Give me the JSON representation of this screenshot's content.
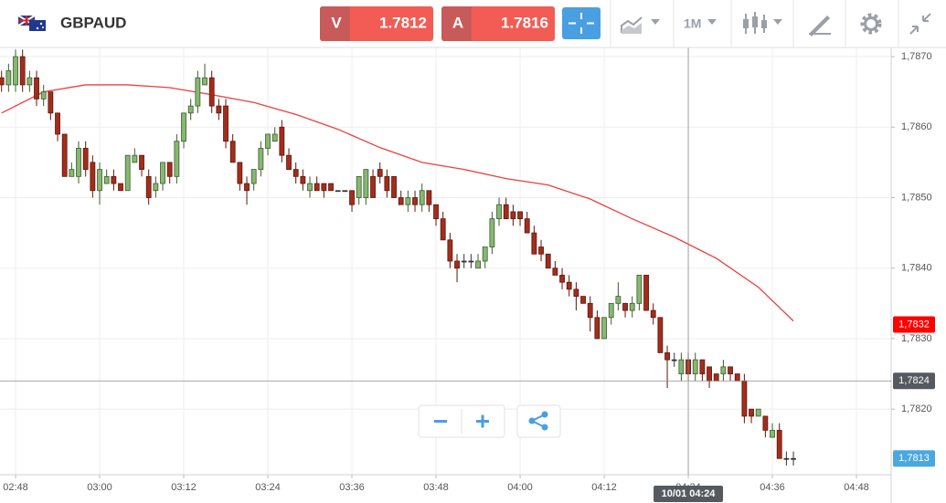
{
  "toolbar": {
    "symbol": "GBPAUD",
    "bid_label": "V",
    "bid": 1.7812,
    "ask_label": "A",
    "ask": 1.7816,
    "timeframe": "1M"
  },
  "chart_data": {
    "type": "candlestick",
    "up_color": "#86b872",
    "down_color": "#a32d1c",
    "grid": true,
    "xlim": [
      165.78,
      292.95
    ],
    "xticks": [
      {
        "value": 168,
        "label": "02:48"
      },
      {
        "value": 180,
        "label": "03:00"
      },
      {
        "value": 192,
        "label": "03:12"
      },
      {
        "value": 204,
        "label": "03:24"
      },
      {
        "value": 216,
        "label": "03:36"
      },
      {
        "value": 228,
        "label": "03:48"
      },
      {
        "value": 240,
        "label": "04:00"
      },
      {
        "value": 252,
        "label": "04:12"
      },
      {
        "value": 264,
        "label": "04:24"
      },
      {
        "value": 276,
        "label": "04:36"
      },
      {
        "value": 288,
        "label": "04:48"
      }
    ],
    "ylim": [
      1.78107,
      1.78713
    ],
    "yticks": [
      {
        "value": 1.782,
        "label": "1,7820"
      },
      {
        "value": 1.783,
        "label": "1,7830"
      },
      {
        "value": 1.784,
        "label": "1,7840"
      },
      {
        "value": 1.785,
        "label": "1,7850"
      },
      {
        "value": 1.786,
        "label": "1,7860"
      },
      {
        "value": 1.787,
        "label": "1,7870"
      }
    ],
    "x": [
      166,
      167,
      168,
      169,
      170,
      171,
      172,
      173,
      174,
      175,
      176,
      177,
      178,
      179,
      180,
      181,
      182,
      183,
      184,
      185,
      186,
      187,
      188,
      189,
      190,
      191,
      192,
      193,
      194,
      195,
      196,
      197,
      198,
      199,
      200,
      201,
      202,
      203,
      204,
      205,
      206,
      207,
      208,
      209,
      210,
      211,
      212,
      213,
      214,
      215,
      216,
      217,
      218,
      219,
      220,
      221,
      222,
      223,
      224,
      225,
      226,
      227,
      228,
      229,
      230,
      231,
      232,
      233,
      234,
      235,
      236,
      237,
      238,
      239,
      240,
      241,
      242,
      243,
      244,
      245,
      246,
      247,
      248,
      249,
      250,
      251,
      252,
      253,
      254,
      255,
      256,
      257,
      258,
      259,
      260,
      261,
      262,
      263,
      264,
      265,
      266,
      267,
      268,
      269,
      270,
      271,
      272,
      273,
      274,
      275,
      276,
      277,
      278,
      279
    ],
    "open": [
      1.7867,
      1.7866,
      1.7866,
      1.787,
      1.7866,
      1.7867,
      1.7864,
      1.7865,
      1.7862,
      1.7859,
      1.7853,
      1.7853,
      1.7857,
      1.7855,
      1.7851,
      1.7852,
      1.7853,
      1.7852,
      1.7851,
      1.7855,
      1.7856,
      1.7853,
      1.7851,
      1.7852,
      1.7855,
      1.7853,
      1.7858,
      1.7862,
      1.7863,
      1.7866,
      1.7867,
      1.7863,
      1.7863,
      1.7858,
      1.7855,
      1.7852,
      1.7852,
      1.7854,
      1.7857,
      1.7858,
      1.786,
      1.7856,
      1.7854,
      1.7853,
      1.7851,
      1.7852,
      1.7852,
      1.7852,
      1.7851,
      1.7851,
      1.7851,
      1.785,
      1.785,
      1.7853,
      1.7854,
      1.7853,
      1.7853,
      1.785,
      1.7849,
      1.785,
      1.7849,
      1.7851,
      1.7849,
      1.7847,
      1.7844,
      1.7841,
      1.7841,
      1.7841,
      1.784,
      1.7841,
      1.7843,
      1.7847,
      1.7849,
      1.7848,
      1.7848,
      1.7847,
      1.7845,
      1.7843,
      1.7842,
      1.784,
      1.7839,
      1.7838,
      1.7837,
      1.7836,
      1.7835,
      1.7833,
      1.783,
      1.7833,
      1.7835,
      1.7835,
      1.7834,
      1.7835,
      1.7839,
      1.7834,
      1.7833,
      1.7828,
      1.7827,
      1.7825,
      1.7827,
      1.7825,
      1.7827,
      1.7826,
      1.7825,
      1.7825,
      1.7826,
      1.7825,
      1.7824,
      1.782,
      1.7819,
      1.7819,
      1.7816,
      1.7817,
      1.7813,
      1.7813
    ],
    "high": [
      1.7868,
      1.7869,
      1.7871,
      1.7871,
      1.7868,
      1.7868,
      1.7866,
      1.7865,
      1.7862,
      1.7859,
      1.7855,
      1.7858,
      1.7858,
      1.7856,
      1.7855,
      1.7854,
      1.7854,
      1.7852,
      1.7856,
      1.7857,
      1.7856,
      1.7854,
      1.7853,
      1.7855,
      1.7855,
      1.7859,
      1.7862,
      1.7864,
      1.7868,
      1.7869,
      1.7868,
      1.7864,
      1.7864,
      1.7859,
      1.7855,
      1.7853,
      1.7854,
      1.7858,
      1.7859,
      1.786,
      1.7861,
      1.7857,
      1.7855,
      1.7854,
      1.7853,
      1.7853,
      1.7852,
      1.7852,
      1.7851,
      1.7851,
      1.7851,
      1.7853,
      1.7854,
      1.7854,
      1.7855,
      1.7854,
      1.7853,
      1.7851,
      1.7851,
      1.7851,
      1.7852,
      1.7851,
      1.7849,
      1.7848,
      1.7845,
      1.7842,
      1.7842,
      1.7842,
      1.7842,
      1.7843,
      1.7848,
      1.785,
      1.785,
      1.7849,
      1.7848,
      1.7848,
      1.7846,
      1.7844,
      1.7842,
      1.7841,
      1.784,
      1.7839,
      1.7838,
      1.7836,
      1.7836,
      1.7834,
      1.7833,
      1.7835,
      1.7838,
      1.7835,
      1.7836,
      1.7839,
      1.7839,
      1.7835,
      1.7833,
      1.7829,
      1.7828,
      1.7828,
      1.7828,
      1.7828,
      1.7827,
      1.7826,
      1.7825,
      1.7827,
      1.7826,
      1.7825,
      1.7825,
      1.782,
      1.782,
      1.7819,
      1.7818,
      1.7818,
      1.7814,
      1.7814
    ],
    "low": [
      1.7865,
      1.7865,
      1.7865,
      1.7865,
      1.7865,
      1.7863,
      1.7863,
      1.7861,
      1.7858,
      1.7853,
      1.7853,
      1.7852,
      1.7853,
      1.785,
      1.7849,
      1.7852,
      1.7851,
      1.7851,
      1.7851,
      1.7855,
      1.7853,
      1.7849,
      1.785,
      1.7851,
      1.7852,
      1.7852,
      1.7857,
      1.7861,
      1.7862,
      1.7866,
      1.7862,
      1.7861,
      1.7857,
      1.7855,
      1.7851,
      1.7849,
      1.7851,
      1.7853,
      1.7856,
      1.7858,
      1.7855,
      1.7854,
      1.7852,
      1.7851,
      1.785,
      1.7851,
      1.785,
      1.7851,
      1.7851,
      1.7851,
      1.7848,
      1.7849,
      1.7849,
      1.785,
      1.7852,
      1.785,
      1.785,
      1.7849,
      1.7848,
      1.7848,
      1.7848,
      1.7848,
      1.7846,
      1.7844,
      1.784,
      1.7838,
      1.784,
      1.784,
      1.784,
      1.784,
      1.7842,
      1.7846,
      1.7847,
      1.7846,
      1.7846,
      1.7845,
      1.7842,
      1.7841,
      1.784,
      1.7839,
      1.7837,
      1.7836,
      1.7834,
      1.7835,
      1.7831,
      1.783,
      1.783,
      1.7832,
      1.7834,
      1.7833,
      1.7833,
      1.7834,
      1.7834,
      1.7832,
      1.7828,
      1.7823,
      1.7826,
      1.7824,
      1.7824,
      1.7824,
      1.7824,
      1.7823,
      1.7824,
      1.7824,
      1.7824,
      1.7824,
      1.7818,
      1.7818,
      1.7819,
      1.7816,
      1.7816,
      1.7813,
      1.7812,
      1.7812
    ],
    "close": [
      1.7866,
      1.7868,
      1.787,
      1.7866,
      1.7867,
      1.7864,
      1.7865,
      1.7862,
      1.7859,
      1.7853,
      1.7854,
      1.7857,
      1.7854,
      1.7851,
      1.7854,
      1.7853,
      1.7852,
      1.7851,
      1.7856,
      1.7856,
      1.7854,
      1.785,
      1.7852,
      1.7855,
      1.7853,
      1.7858,
      1.7862,
      1.7863,
      1.7867,
      1.7867,
      1.7863,
      1.7862,
      1.7858,
      1.7855,
      1.7852,
      1.7851,
      1.7854,
      1.7857,
      1.7859,
      1.7859,
      1.7856,
      1.7854,
      1.7853,
      1.7852,
      1.7852,
      1.7851,
      1.7851,
      1.7851,
      1.7851,
      1.7851,
      1.7849,
      1.7853,
      1.7854,
      1.785,
      1.7853,
      1.7851,
      1.785,
      1.7849,
      1.785,
      1.7849,
      1.7851,
      1.7849,
      1.7847,
      1.7844,
      1.7841,
      1.784,
      1.7841,
      1.7841,
      1.7841,
      1.7843,
      1.7847,
      1.7849,
      1.7847,
      1.7847,
      1.7847,
      1.7845,
      1.7842,
      1.7842,
      1.784,
      1.7839,
      1.7838,
      1.7837,
      1.7836,
      1.7835,
      1.7833,
      1.783,
      1.7833,
      1.7835,
      1.7836,
      1.7834,
      1.7835,
      1.7839,
      1.7834,
      1.7833,
      1.7828,
      1.7827,
      1.7827,
      1.7827,
      1.7825,
      1.7827,
      1.7825,
      1.7824,
      1.7824,
      1.7826,
      1.7825,
      1.7824,
      1.7819,
      1.7819,
      1.782,
      1.7817,
      1.7817,
      1.7813,
      1.7813,
      1.7813
    ],
    "moving_average": {
      "color": "#e8413a",
      "x": [
        166,
        172,
        178,
        184,
        190,
        196,
        202,
        208,
        214,
        220,
        226,
        232,
        238,
        244,
        250,
        256,
        262,
        268,
        274,
        279
      ],
      "values": [
        1.7862,
        1.7865,
        1.7866,
        1.7866,
        1.78656,
        1.78646,
        1.78635,
        1.78618,
        1.78597,
        1.78571,
        1.7855,
        1.7854,
        1.78527,
        1.78518,
        1.78498,
        1.7847,
        1.78444,
        1.78414,
        1.78373,
        1.78325
      ]
    },
    "price_labels": [
      {
        "value": 1.7832,
        "label": "1,7832",
        "color": "#ff0000"
      },
      {
        "value": 1.7813,
        "label": "1,7813",
        "color": "#4aa8e0"
      }
    ],
    "crosshair": {
      "x": 264,
      "x_label": "10/01 04:24",
      "y": 1.7824,
      "y_label": "1,7824",
      "color": "#555a60"
    }
  }
}
